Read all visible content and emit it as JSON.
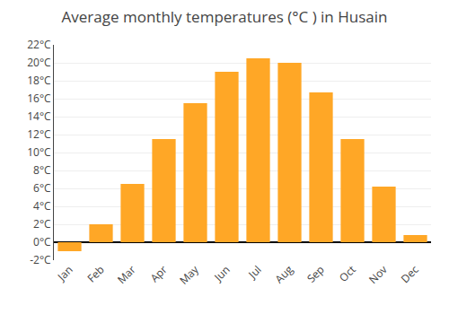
{
  "chart_data": {
    "type": "bar",
    "title": "Average monthly temperatures (°C ) in Husain",
    "categories": [
      "Jan",
      "Feb",
      "Mar",
      "Apr",
      "May",
      "Jun",
      "Jul",
      "Aug",
      "Sep",
      "Oct",
      "Nov",
      "Dec"
    ],
    "values": [
      -1.0,
      2.0,
      6.5,
      11.5,
      15.5,
      19.0,
      20.5,
      20.0,
      16.7,
      11.5,
      6.2,
      0.8
    ],
    "color": "#FFA726",
    "ylim": [
      -2,
      22
    ],
    "yticks": [
      {
        "value": -2,
        "label": "-2°C"
      },
      {
        "value": 0,
        "label": "0°C"
      },
      {
        "value": 2,
        "label": "2°C"
      },
      {
        "value": 4,
        "label": "4°C"
      },
      {
        "value": 6,
        "label": "6°C"
      },
      {
        "value": 8,
        "label": "8°C"
      },
      {
        "value": 10,
        "label": "10°C"
      },
      {
        "value": 12,
        "label": "12°C"
      },
      {
        "value": 14,
        "label": "14°C"
      },
      {
        "value": 16,
        "label": "16°C"
      },
      {
        "value": 18,
        "label": "18°C"
      },
      {
        "value": 20,
        "label": "20°C"
      },
      {
        "value": 22,
        "label": "22°C"
      }
    ],
    "grid": true
  }
}
